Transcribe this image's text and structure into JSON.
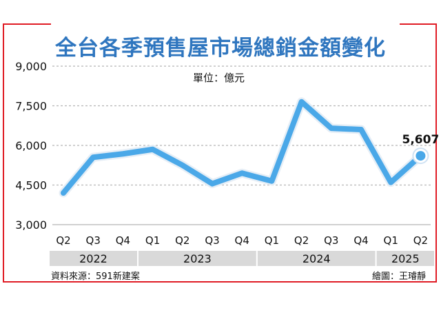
{
  "title": "全台各季預售屋市場總銷金額變化",
  "unit": "單位：億元",
  "source": "資料來源：591新建案",
  "credit": "繪圖：王璿靜",
  "chart_data": {
    "type": "line",
    "title": "全台各季預售屋市場總銷金額變化",
    "xlabel": "",
    "ylabel": "",
    "ylim": [
      3000,
      9000
    ],
    "yticks": [
      "3,000",
      "4,500",
      "6,000",
      "7,500",
      "9,000"
    ],
    "ytick_values": [
      3000,
      4500,
      6000,
      7500,
      9000
    ],
    "grid": true,
    "categories": [
      "Q2",
      "Q3",
      "Q4",
      "Q1",
      "Q2",
      "Q3",
      "Q4",
      "Q1",
      "Q2",
      "Q3",
      "Q4",
      "Q1",
      "Q2"
    ],
    "values": [
      4200,
      5550,
      5680,
      5850,
      5250,
      4550,
      4950,
      4650,
      7650,
      6650,
      6600,
      4600,
      5607
    ],
    "years": [
      {
        "label": "2022",
        "quarters": 3
      },
      {
        "label": "2023",
        "quarters": 4
      },
      {
        "label": "2024",
        "quarters": 4
      },
      {
        "label": "2025",
        "quarters": 2
      }
    ],
    "last_value_label": "5,607",
    "line_color": "#4aa8e8",
    "outline_color": "#e6eef6",
    "year_band_color": "#d9d9d9"
  }
}
